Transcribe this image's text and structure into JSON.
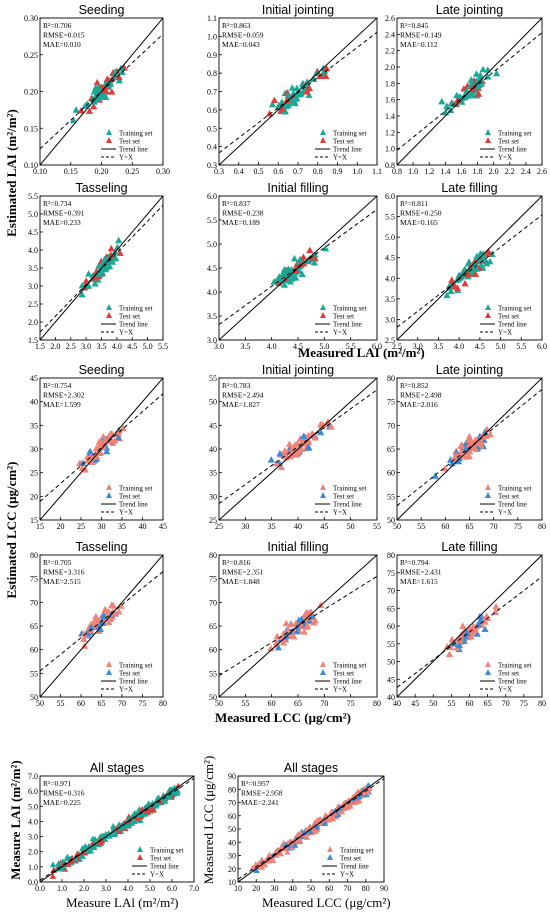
{
  "figure": {
    "lai_ylabel": "Estimated LAI (m²/m²)",
    "lai_xlabel": "Measured LAI (m²/m²)",
    "lcc_ylabel": "Estimated LCC (μg/cm²)",
    "lcc_xlabel": "Measured LCC (μg/cm²)",
    "all_lai_ylabel": "Measure LAI (m²/m²)",
    "all_lai_xlabel": "Measure LAl (m²/m²)",
    "all_lcc_ylabel": "Measured LCC (μg/cm²)",
    "all_lcc_xlabel": "Measured LCC (μg/cm²)"
  },
  "colors": {
    "lai_training": "#1aa898",
    "lai_test": "#e23a36",
    "lcc_training": "#f08276",
    "lcc_test": "#3a8ad8"
  },
  "chart_data": [
    {
      "type": "scatter",
      "title": "Seeding",
      "stats": [
        "R²=0.706",
        "RMSE=0.015",
        "MAE=0.010"
      ],
      "xlim": [
        0.1,
        0.3
      ],
      "ylim": [
        0.1,
        0.3
      ],
      "xticks": [
        "0.10",
        "0.15",
        "0.20",
        "0.25",
        "0.30"
      ],
      "yticks": [
        "0.10",
        "0.15",
        "0.20",
        "0.25",
        "0.30"
      ],
      "trend": [
        0.78,
        0.044
      ],
      "legend": [
        "Training set",
        "Test set",
        "Trend line",
        "Y=X"
      ]
    },
    {
      "type": "scatter",
      "title": "Initial jointing",
      "stats": [
        "R²=0.863",
        "RMSE=0.059",
        "MAE=0.043"
      ],
      "xlim": [
        0.3,
        1.1
      ],
      "ylim": [
        0.3,
        1.1
      ],
      "xticks": [
        "0.3",
        "0.4",
        "0.5",
        "0.6",
        "0.7",
        "0.8",
        "0.9",
        "1.0",
        "1.1"
      ],
      "yticks": [
        "0.3",
        "0.4",
        "0.5",
        "0.6",
        "0.7",
        "0.8",
        "0.9",
        "1.0",
        "1.1"
      ],
      "trend": [
        0.82,
        0.12
      ],
      "legend": [
        "Training set",
        "Test set",
        "Trend line",
        "Y=X"
      ]
    },
    {
      "type": "scatter",
      "title": "Late jointing",
      "stats": [
        "R²=0.845",
        "RMSE=0.149",
        "MAE=0.112"
      ],
      "xlim": [
        0.8,
        2.6
      ],
      "ylim": [
        0.8,
        2.6
      ],
      "xticks": [
        "0.8",
        "1.0",
        "1.2",
        "1.4",
        "1.6",
        "1.8",
        "2.0",
        "2.2",
        "2.4",
        "2.6"
      ],
      "yticks": [
        "0.8",
        "1.0",
        "1.2",
        "1.4",
        "1.6",
        "1.8",
        "2.0",
        "2.2",
        "2.4",
        "2.6"
      ],
      "trend": [
        0.8,
        0.34
      ],
      "legend": [
        "Training set",
        "Test set",
        "Trend line",
        "Y=X"
      ]
    },
    {
      "type": "scatter",
      "title": "Tasseling",
      "stats": [
        "R²=0.734",
        "RMSE=0.391",
        "MAE=0.233"
      ],
      "xlim": [
        1.5,
        5.5
      ],
      "ylim": [
        1.5,
        5.5
      ],
      "xticks": [
        "1.5",
        "2.0",
        "2.5",
        "3.0",
        "3.5",
        "4.0",
        "4.5",
        "5.0",
        "5.5"
      ],
      "yticks": [
        "1.5",
        "2.0",
        "2.5",
        "3.0",
        "3.5",
        "4.0",
        "4.5",
        "5.0",
        "5.5"
      ],
      "trend": [
        0.88,
        0.4
      ],
      "legend": [
        "Training set",
        "Test set",
        "Trend line",
        "Y=X"
      ]
    },
    {
      "type": "scatter",
      "title": "Initial filling",
      "stats": [
        "R²=0.837",
        "RMSE=0.238",
        "MAE=0.189"
      ],
      "xlim": [
        3.0,
        6.0
      ],
      "ylim": [
        3.0,
        6.0
      ],
      "xticks": [
        "3.0",
        "3.5",
        "4.0",
        "4.5",
        "5.0",
        "5.5",
        "6.0"
      ],
      "yticks": [
        "3.0",
        "3.5",
        "4.0",
        "4.5",
        "5.0",
        "5.5",
        "6.0"
      ],
      "trend": [
        0.8,
        0.92
      ],
      "legend": [
        "Training set",
        "Test set",
        "Trend line",
        "Y=X"
      ]
    },
    {
      "type": "scatter",
      "title": "Late filling",
      "stats": [
        "R²=0.811",
        "RMSE=0.250",
        "MAE=0.165"
      ],
      "xlim": [
        2.5,
        6.0
      ],
      "ylim": [
        2.5,
        6.0
      ],
      "xticks": [
        "2.5",
        "3.0",
        "3.5",
        "4.0",
        "4.5",
        "5.0",
        "5.5",
        "6.0"
      ],
      "yticks": [
        "2.5",
        "3.0",
        "3.5",
        "4.0",
        "4.5",
        "5.0",
        "5.5",
        "6.0"
      ],
      "trend": [
        0.78,
        0.86
      ],
      "legend": [
        "Training set",
        "Test set",
        "Trend line",
        "Y=X"
      ]
    },
    {
      "type": "scatter",
      "title": "Seeding",
      "stats": [
        "R²=0.754",
        "RMSE=2.302",
        "MAE=1.599"
      ],
      "xlim": [
        15,
        45
      ],
      "ylim": [
        15,
        45
      ],
      "xticks": [
        "15",
        "20",
        "25",
        "30",
        "35",
        "40",
        "45"
      ],
      "yticks": [
        "15",
        "20",
        "25",
        "30",
        "35",
        "40",
        "45"
      ],
      "trend": [
        0.76,
        7.5
      ],
      "legend": [
        "Training set",
        "Test set",
        "Trend line",
        "Y=X"
      ]
    },
    {
      "type": "scatter",
      "title": "Initial jointing",
      "stats": [
        "R²=0.783",
        "RMSE=2.494",
        "MAE=1.827"
      ],
      "xlim": [
        25,
        55
      ],
      "ylim": [
        25,
        55
      ],
      "xticks": [
        "25",
        "30",
        "35",
        "40",
        "45",
        "50",
        "55"
      ],
      "yticks": [
        "25",
        "30",
        "35",
        "40",
        "45",
        "50",
        "55"
      ],
      "trend": [
        0.8,
        8.5
      ],
      "legend": [
        "Training set",
        "Test set",
        "Trend line",
        "Y=X"
      ]
    },
    {
      "type": "scatter",
      "title": "Late jointing",
      "stats": [
        "R²=0.852",
        "RMSE=2.498",
        "MAE=2.016"
      ],
      "xlim": [
        50,
        80
      ],
      "ylim": [
        50,
        80
      ],
      "xticks": [
        "50",
        "55",
        "60",
        "65",
        "70",
        "75",
        "80"
      ],
      "yticks": [
        "50",
        "55",
        "60",
        "65",
        "70",
        "75",
        "80"
      ],
      "trend": [
        0.82,
        12.0
      ],
      "legend": [
        "Training set",
        "Test set",
        "Trend line",
        "Y=X"
      ]
    },
    {
      "type": "scatter",
      "title": "Tasseling",
      "stats": [
        "R²=0.705",
        "RMSE=3.316",
        "MAE=2.515"
      ],
      "xlim": [
        50,
        80
      ],
      "ylim": [
        50,
        80
      ],
      "xticks": [
        "50",
        "55",
        "60",
        "65",
        "70",
        "75",
        "80"
      ],
      "yticks": [
        "50",
        "55",
        "60",
        "65",
        "70",
        "75",
        "80"
      ],
      "trend": [
        0.7,
        20.5
      ],
      "legend": [
        "Training set",
        "Test set",
        "Trend line",
        "Y=X"
      ]
    },
    {
      "type": "scatter",
      "title": "Initial filling",
      "stats": [
        "R²=0.816",
        "RMSE=2.351",
        "MAE=1.848"
      ],
      "xlim": [
        50,
        80
      ],
      "ylim": [
        50,
        80
      ],
      "xticks": [
        "50",
        "55",
        "60",
        "65",
        "70",
        "75",
        "80"
      ],
      "yticks": [
        "50",
        "55",
        "60",
        "65",
        "70",
        "75",
        "80"
      ],
      "trend": [
        0.7,
        19.5
      ],
      "legend": [
        "Training set",
        "Test set",
        "Trend line",
        "Y=X"
      ]
    },
    {
      "type": "scatter",
      "title": "Late filling",
      "stats": [
        "R²=0.794",
        "RMSE=2.431",
        "MAE=1.615"
      ],
      "xlim": [
        40,
        80
      ],
      "ylim": [
        40,
        80
      ],
      "xticks": [
        "40",
        "45",
        "50",
        "55",
        "60",
        "65",
        "70",
        "75",
        "80"
      ],
      "yticks": [
        "40",
        "45",
        "50",
        "55",
        "60",
        "65",
        "70",
        "75",
        "80"
      ],
      "trend": [
        0.78,
        11.5
      ],
      "legend": [
        "Training set",
        "Test set",
        "Trend line",
        "Y=X"
      ]
    },
    {
      "type": "scatter",
      "title": "All stages",
      "stats": [
        "R²=0.971",
        "RMSE=0.316",
        "MAE=0.225"
      ],
      "xlim": [
        0.0,
        7.0
      ],
      "ylim": [
        0.0,
        7.0
      ],
      "xticks": [
        "0.0",
        "1.0",
        "2.0",
        "3.0",
        "4.0",
        "5.0",
        "6.0",
        "7.0"
      ],
      "yticks": [
        "0.0",
        "1.0",
        "2.0",
        "3.0",
        "4.0",
        "5.0",
        "6.0",
        "7.0"
      ],
      "trend": [
        0.96,
        0.12
      ],
      "legend": [
        "Training set",
        "Test set",
        "Trend line",
        "Y=X"
      ]
    },
    {
      "type": "scatter",
      "title": "All stages",
      "stats": [
        "R²=0.957",
        "RMSE=2.958",
        "MAE=2.241"
      ],
      "xlim": [
        10,
        90
      ],
      "ylim": [
        10,
        90
      ],
      "xticks": [
        "10",
        "20",
        "30",
        "40",
        "50",
        "60",
        "70",
        "80",
        "90"
      ],
      "yticks": [
        "10",
        "20",
        "30",
        "40",
        "50",
        "60",
        "70",
        "80",
        "90"
      ],
      "trend": [
        0.95,
        2.5
      ],
      "legend": [
        "Training set",
        "Test set",
        "Trend line",
        "Y=X"
      ]
    }
  ]
}
